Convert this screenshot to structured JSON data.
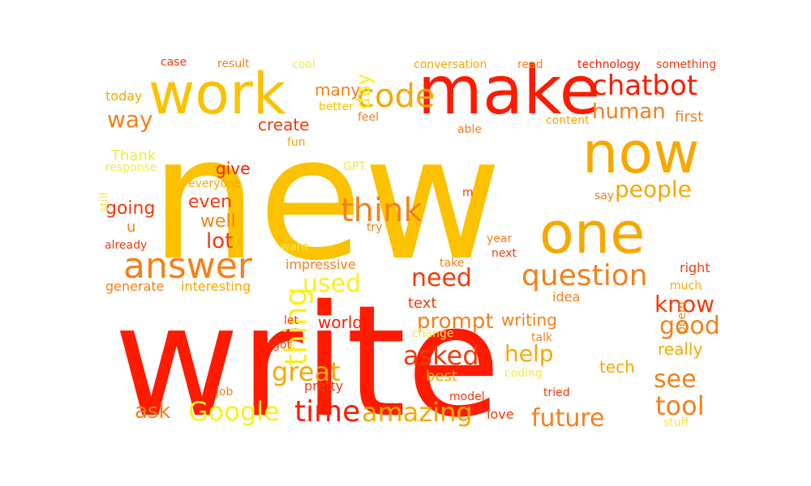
{
  "colors": {
    "red": "#ff1a00",
    "red_orange": "#f43a0c",
    "orange": "#f4801a",
    "amber": "#f7a800",
    "gold": "#fcc200",
    "yellow": "#f8f020",
    "light_yellow": "#f2e848"
  },
  "words": [
    {
      "text": "new",
      "color": "gold"
    },
    {
      "text": "write",
      "color": "red"
    },
    {
      "text": "make",
      "color": "red"
    },
    {
      "text": "work",
      "color": "gold"
    },
    {
      "text": "now",
      "color": "amber"
    },
    {
      "text": "one",
      "color": "amber"
    },
    {
      "text": "answer",
      "color": "orange"
    },
    {
      "text": "code",
      "color": "amber"
    },
    {
      "text": "chatbot",
      "color": "red"
    },
    {
      "text": "human",
      "color": "orange"
    },
    {
      "text": "way",
      "color": "orange"
    },
    {
      "text": "day",
      "color": "yellow"
    },
    {
      "text": "think",
      "color": "orange"
    },
    {
      "text": "people",
      "color": "amber"
    },
    {
      "text": "question",
      "color": "orange"
    },
    {
      "text": "thing",
      "color": "yellow"
    },
    {
      "text": "need",
      "color": "red_orange"
    },
    {
      "text": "used",
      "color": "yellow"
    },
    {
      "text": "great",
      "color": "amber"
    },
    {
      "text": "asked",
      "color": "red_orange"
    },
    {
      "text": "help",
      "color": "amber"
    },
    {
      "text": "know",
      "color": "red_orange"
    },
    {
      "text": "good",
      "color": "orange"
    },
    {
      "text": "see",
      "color": "orange"
    },
    {
      "text": "tool",
      "color": "orange"
    },
    {
      "text": "Google",
      "color": "yellow"
    },
    {
      "text": "time",
      "color": "red"
    },
    {
      "text": "amazing",
      "color": "amber"
    },
    {
      "text": "future",
      "color": "orange"
    },
    {
      "text": "prompt",
      "color": "orange"
    },
    {
      "text": "ask",
      "color": "orange"
    },
    {
      "text": "lot",
      "color": "red_orange"
    },
    {
      "text": "even",
      "color": "red_orange"
    },
    {
      "text": "well",
      "color": "orange"
    },
    {
      "text": "give",
      "color": "red"
    },
    {
      "text": "going",
      "color": "red_orange"
    },
    {
      "text": "create",
      "color": "red_orange"
    },
    {
      "text": "many",
      "color": "orange"
    },
    {
      "text": "really",
      "color": "amber"
    },
    {
      "text": "world",
      "color": "red"
    },
    {
      "text": "writing",
      "color": "orange"
    },
    {
      "text": "text",
      "color": "red_orange"
    },
    {
      "text": "best",
      "color": "amber"
    },
    {
      "text": "tech",
      "color": "amber"
    },
    {
      "text": "Thank",
      "color": "light_yellow"
    },
    {
      "text": "case",
      "color": "red_orange"
    },
    {
      "text": "result",
      "color": "orange"
    },
    {
      "text": "cool",
      "color": "light_yellow"
    },
    {
      "text": "conversation",
      "color": "amber"
    },
    {
      "text": "read",
      "color": "orange"
    },
    {
      "text": "technology",
      "color": "red"
    },
    {
      "text": "something",
      "color": "red_orange"
    },
    {
      "text": "today",
      "color": "amber"
    },
    {
      "text": "better",
      "color": "gold"
    },
    {
      "text": "feel",
      "color": "orange"
    },
    {
      "text": "content",
      "color": "amber"
    },
    {
      "text": "first",
      "color": "orange"
    },
    {
      "text": "able",
      "color": "orange"
    },
    {
      "text": "fun",
      "color": "amber"
    },
    {
      "text": "response",
      "color": "light_yellow"
    },
    {
      "text": "GPT",
      "color": "light_yellow"
    },
    {
      "text": "everyone",
      "color": "amber"
    },
    {
      "text": "still",
      "color": "light_yellow"
    },
    {
      "text": "m",
      "color": "red_orange"
    },
    {
      "text": "say",
      "color": "orange"
    },
    {
      "text": "u",
      "color": "orange"
    },
    {
      "text": "try",
      "color": "orange"
    },
    {
      "text": "year",
      "color": "orange"
    },
    {
      "text": "already",
      "color": "red_orange"
    },
    {
      "text": "want",
      "color": "light_yellow"
    },
    {
      "text": "next",
      "color": "red_orange"
    },
    {
      "text": "impressive",
      "color": "orange"
    },
    {
      "text": "take",
      "color": "orange"
    },
    {
      "text": "right",
      "color": "red_orange"
    },
    {
      "text": "generate",
      "color": "orange"
    },
    {
      "text": "interesting",
      "color": "amber"
    },
    {
      "text": "idea",
      "color": "orange"
    },
    {
      "text": "much",
      "color": "amber"
    },
    {
      "text": "let",
      "color": "red_orange"
    },
    {
      "text": "change",
      "color": "light_yellow"
    },
    {
      "text": "got",
      "color": "red_orange"
    },
    {
      "text": "talk",
      "color": "orange"
    },
    {
      "text": "poem",
      "color": "orange"
    },
    {
      "text": "coding",
      "color": "light_yellow"
    },
    {
      "text": "job",
      "color": "orange"
    },
    {
      "text": "pretty",
      "color": "red_orange"
    },
    {
      "text": "model",
      "color": "red_orange"
    },
    {
      "text": "tried",
      "color": "red_orange"
    },
    {
      "text": "love",
      "color": "red_orange"
    },
    {
      "text": "stuff",
      "color": "light_yellow"
    }
  ]
}
